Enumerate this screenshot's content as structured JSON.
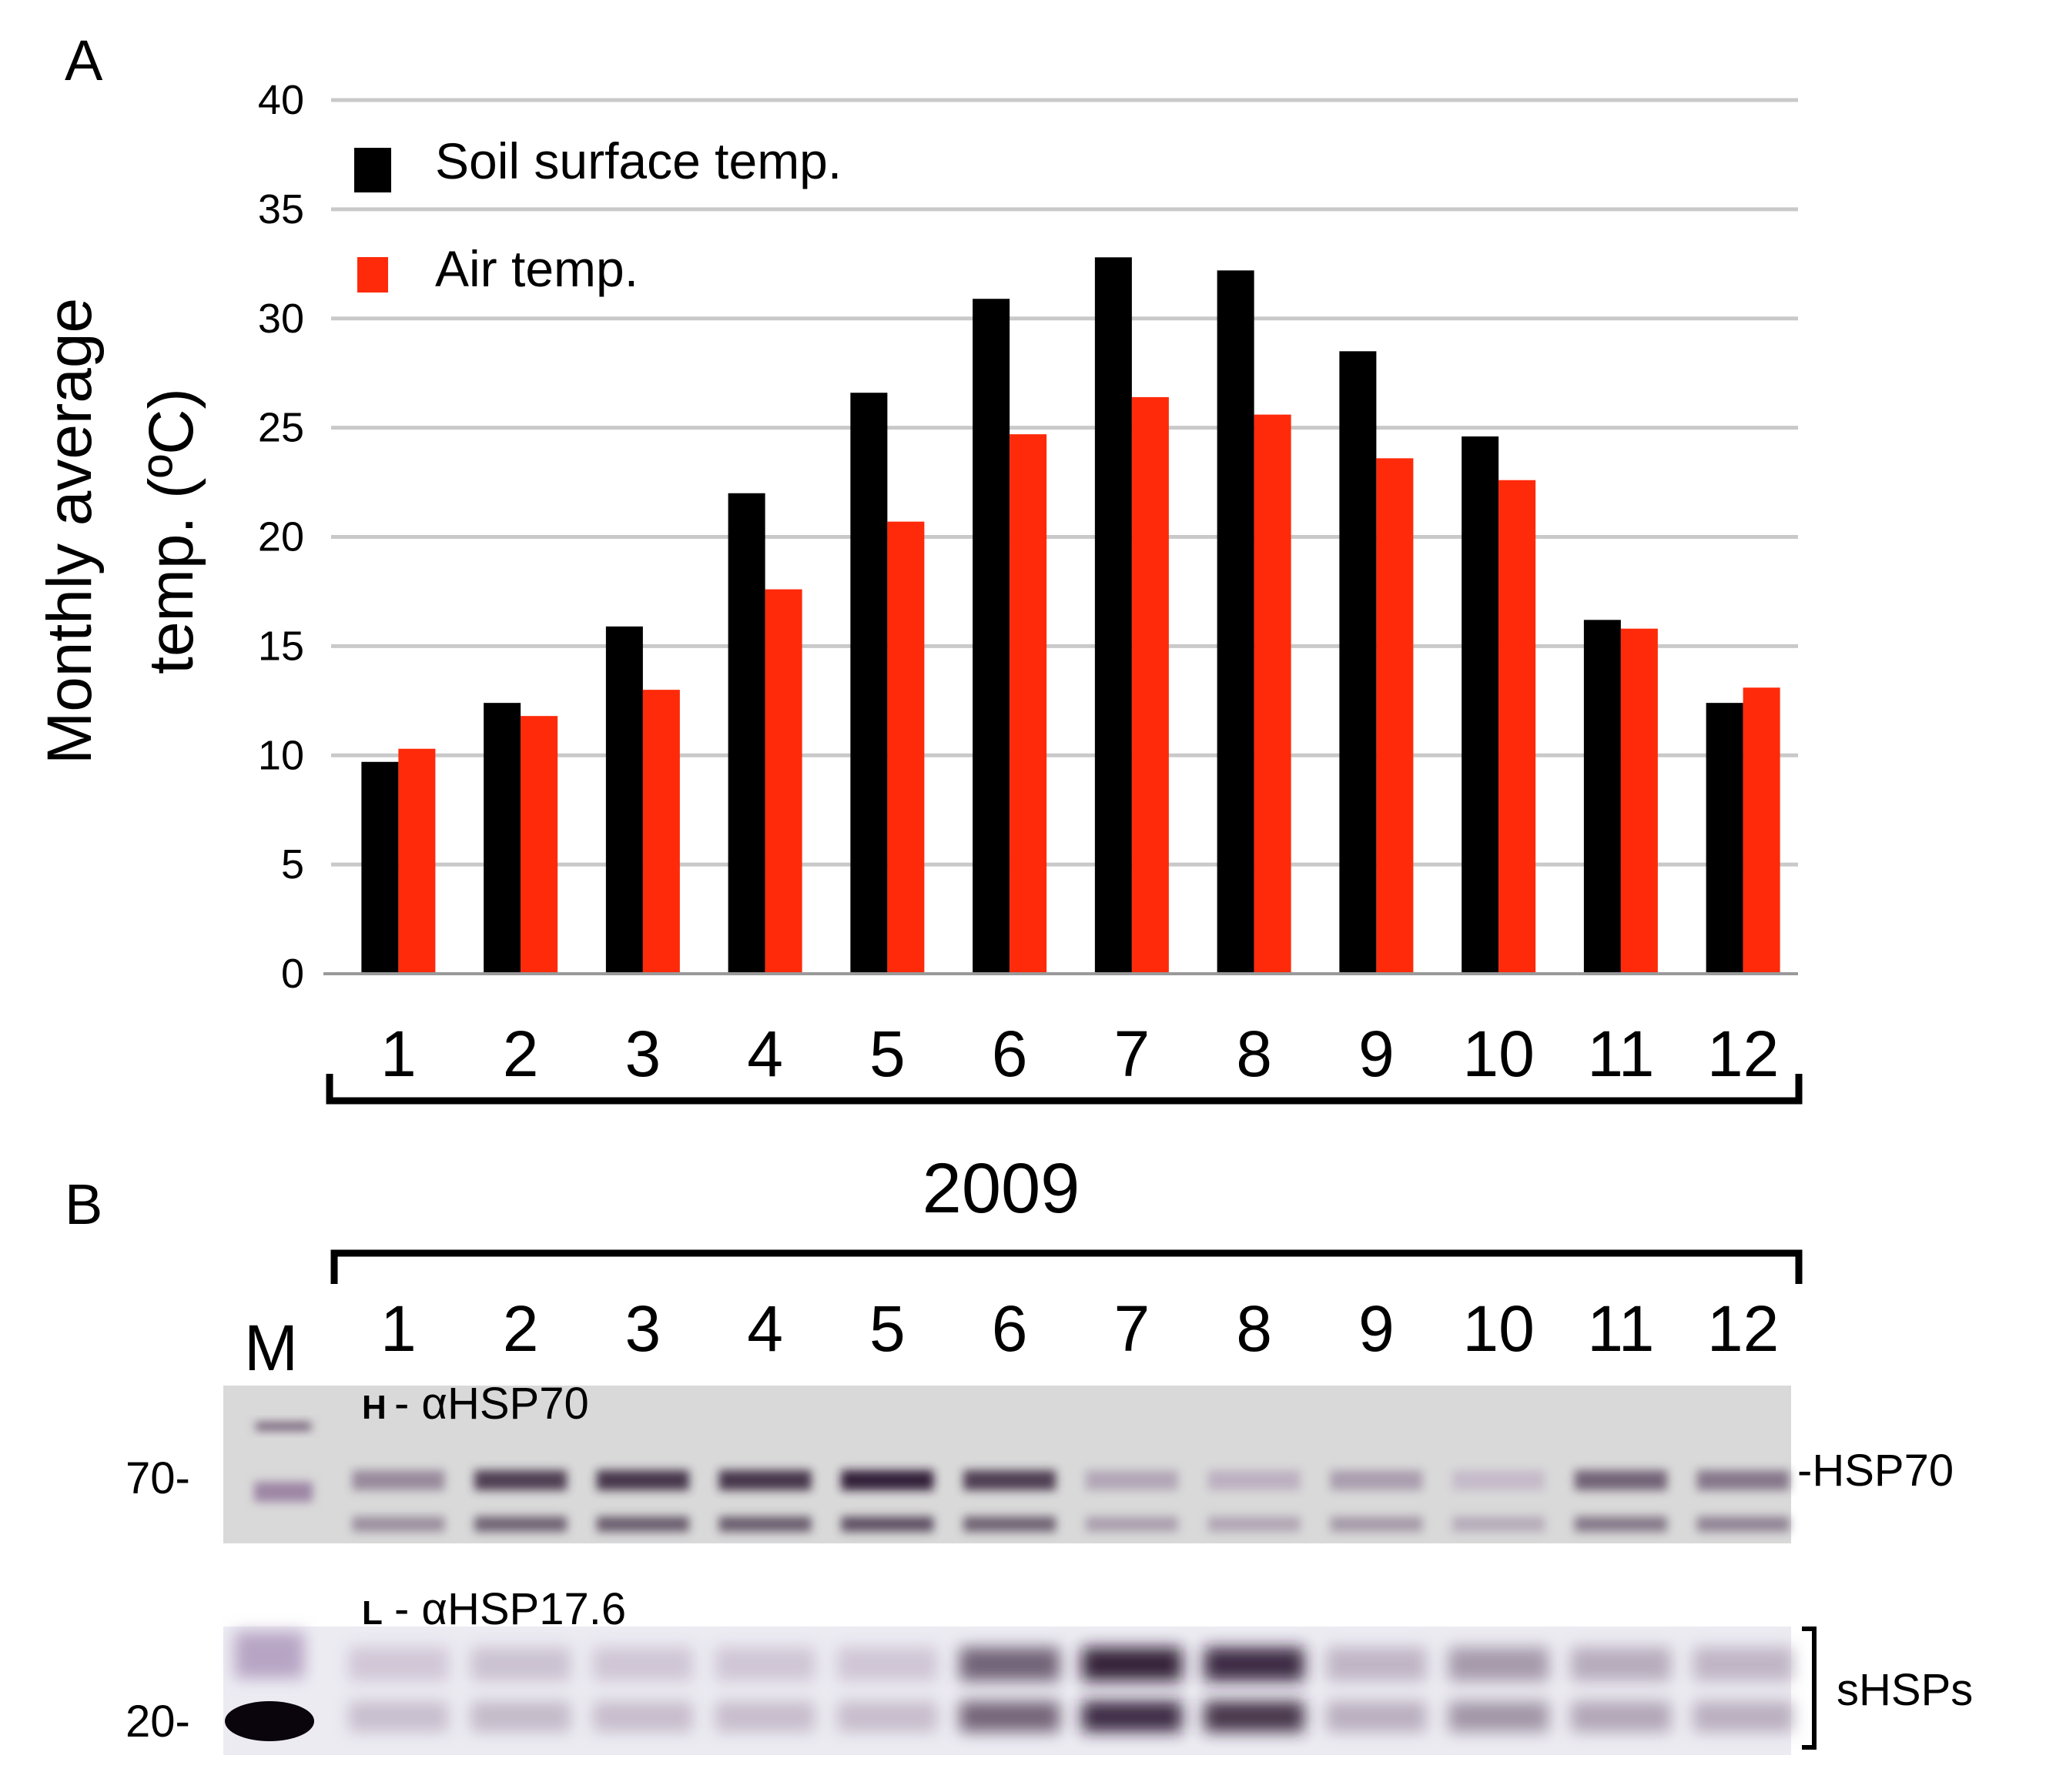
{
  "panel_a_letter": "A",
  "panel_b_letter": "B",
  "chart_data": {
    "type": "bar",
    "title": "",
    "xlabel": "2009",
    "ylabel_line1": "Monthly average",
    "ylabel_line2": "temp. (ºC)",
    "ylim": [
      0,
      40
    ],
    "yticks": [
      "0",
      "5",
      "10",
      "15",
      "20",
      "25",
      "30",
      "35",
      "40"
    ],
    "grid": true,
    "legend_position": "top-left",
    "categories": [
      "1",
      "2",
      "3",
      "4",
      "5",
      "6",
      "7",
      "8",
      "9",
      "10",
      "11",
      "12"
    ],
    "series": [
      {
        "name": "Soil surface temp.",
        "color": "#000000",
        "values": [
          9.7,
          12.4,
          15.9,
          22.0,
          26.6,
          30.9,
          32.8,
          32.2,
          28.5,
          24.6,
          16.2,
          12.4
        ]
      },
      {
        "name": "Air temp.",
        "color": "#ff2a0a",
        "values": [
          10.3,
          11.8,
          13.0,
          17.6,
          20.7,
          24.7,
          26.4,
          25.6,
          23.6,
          22.6,
          15.8,
          13.1
        ]
      }
    ]
  },
  "blot": {
    "year": "2009",
    "marker_label": "M",
    "lanes": [
      "1",
      "2",
      "3",
      "4",
      "5",
      "6",
      "7",
      "8",
      "9",
      "10",
      "11",
      "12"
    ],
    "upper_panel": {
      "tag": "H",
      "antibody": "- αHSP70",
      "size_marker": "70-",
      "band_label": "-HSP70",
      "intensity": [
        0.35,
        0.75,
        0.8,
        0.8,
        0.9,
        0.75,
        0.2,
        0.15,
        0.25,
        0.1,
        0.55,
        0.45
      ]
    },
    "lower_panel": {
      "tag": "L",
      "antibody": "- αHSP17.6",
      "size_marker": "20-",
      "band_label": "sHSPs",
      "intensity": [
        0.05,
        0.08,
        0.06,
        0.06,
        0.06,
        0.6,
        0.95,
        0.9,
        0.15,
        0.3,
        0.2,
        0.15
      ]
    }
  }
}
